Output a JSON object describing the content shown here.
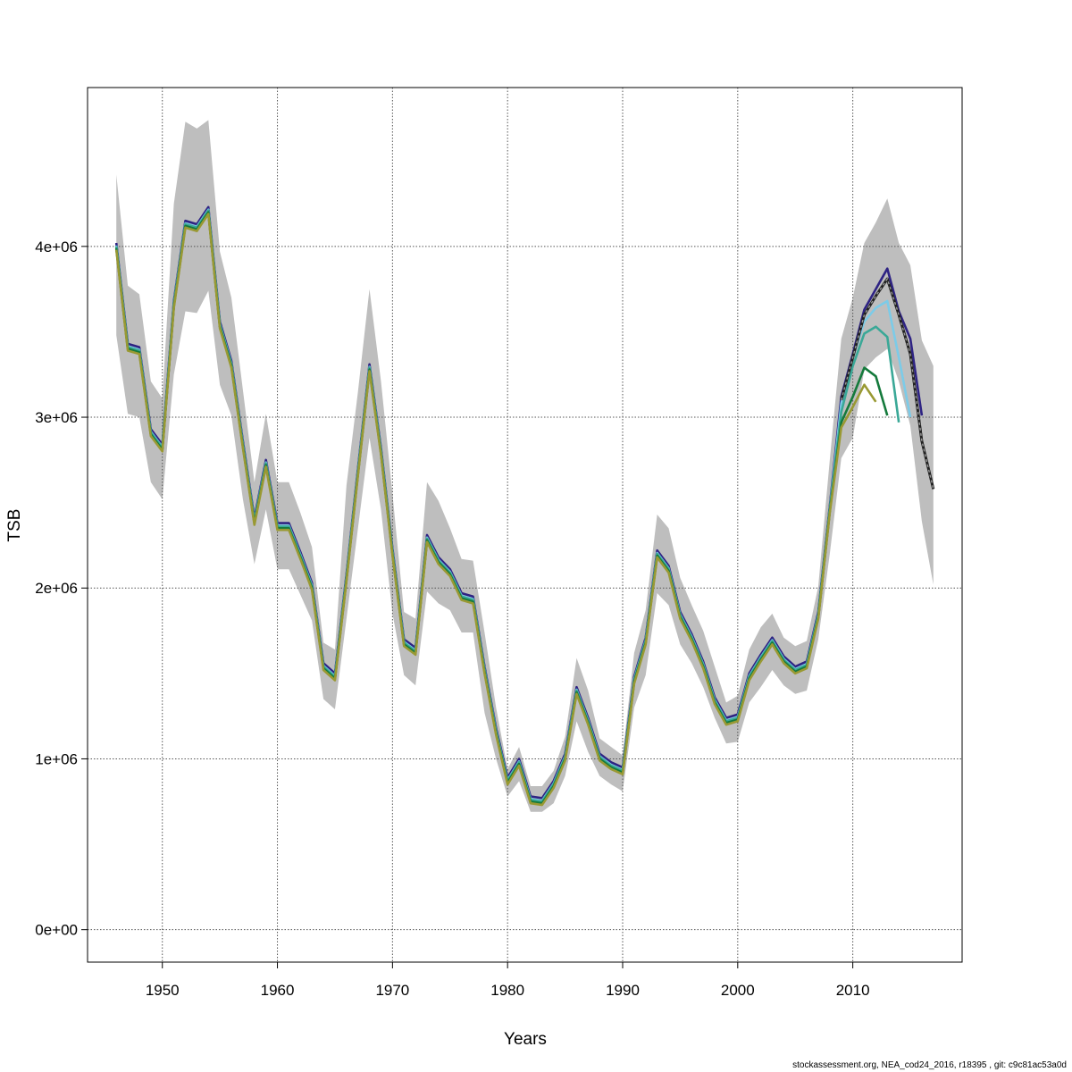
{
  "chart_data": {
    "type": "line",
    "title": "",
    "xlabel": "Years",
    "ylabel": "TSB",
    "xlim": [
      1943.5,
      2019.5
    ],
    "ylim": [
      -190000,
      4930000
    ],
    "value_unit": 1000000,
    "grid": true,
    "legend": "none",
    "x_ticks": [
      1950,
      1960,
      1970,
      1980,
      1990,
      2000,
      2010
    ],
    "x_tick_labels": [
      "1950",
      "1960",
      "1970",
      "1980",
      "1990",
      "2000",
      "2010"
    ],
    "y_ticks": [
      0,
      1,
      2,
      3,
      4
    ],
    "y_tick_labels": [
      "0e+00",
      "1e+06",
      "2e+06",
      "3e+06",
      "4e+06"
    ],
    "years": [
      1946,
      1947,
      1948,
      1949,
      1950,
      1951,
      1952,
      1953,
      1954,
      1955,
      1956,
      1957,
      1958,
      1959,
      1960,
      1961,
      1962,
      1963,
      1964,
      1965,
      1966,
      1967,
      1968,
      1969,
      1970,
      1971,
      1972,
      1973,
      1974,
      1975,
      1976,
      1977,
      1978,
      1979,
      1980,
      1981,
      1982,
      1983,
      1984,
      1985,
      1986,
      1987,
      1988,
      1989,
      1990,
      1991,
      1992,
      1993,
      1994,
      1995,
      1996,
      1997,
      1998,
      1999,
      2000,
      2001,
      2002,
      2003,
      2004,
      2005,
      2006,
      2007,
      2008,
      2009,
      2010,
      2011,
      2012,
      2013,
      2014,
      2015,
      2016,
      2017
    ],
    "base": {
      "name": "base",
      "color": "#000000",
      "values": [
        3.99,
        3.4,
        3.38,
        2.9,
        2.81,
        3.65,
        4.12,
        4.1,
        4.2,
        3.53,
        3.3,
        2.83,
        2.38,
        2.72,
        2.35,
        2.35,
        2.18,
        2.0,
        1.53,
        1.47,
        2.05,
        2.67,
        3.28,
        2.79,
        2.2,
        1.67,
        1.62,
        2.28,
        2.15,
        2.08,
        1.94,
        1.92,
        1.51,
        1.15,
        0.86,
        0.97,
        0.75,
        0.74,
        0.84,
        1.0,
        1.39,
        1.21,
        1.0,
        0.95,
        0.92,
        1.45,
        1.68,
        2.19,
        2.1,
        1.83,
        1.7,
        1.54,
        1.33,
        1.21,
        1.23,
        1.47,
        1.58,
        1.68,
        1.57,
        1.51,
        1.54,
        1.83,
        2.45,
        3.1,
        3.35,
        3.6,
        3.71,
        3.81,
        3.6,
        3.37,
        2.86,
        2.58
      ],
      "lower": [
        3.48,
        3.02,
        3.0,
        2.62,
        2.52,
        3.25,
        3.62,
        3.61,
        3.74,
        3.19,
        3.01,
        2.52,
        2.14,
        2.46,
        2.11,
        2.11,
        1.96,
        1.81,
        1.35,
        1.29,
        1.82,
        2.35,
        2.88,
        2.46,
        1.85,
        1.49,
        1.43,
        1.98,
        1.91,
        1.87,
        1.74,
        1.74,
        1.27,
        1.0,
        0.78,
        0.87,
        0.69,
        0.69,
        0.74,
        0.9,
        1.22,
        1.04,
        0.9,
        0.85,
        0.81,
        1.3,
        1.49,
        1.97,
        1.9,
        1.67,
        1.56,
        1.42,
        1.24,
        1.09,
        1.1,
        1.33,
        1.42,
        1.52,
        1.43,
        1.38,
        1.4,
        1.7,
        2.2,
        2.76,
        2.88,
        3.28,
        3.35,
        3.4,
        3.21,
        2.95,
        2.39,
        2.02
      ],
      "upper": [
        4.42,
        3.77,
        3.72,
        3.21,
        3.11,
        4.25,
        4.73,
        4.69,
        4.74,
        3.97,
        3.7,
        3.16,
        2.62,
        3.02,
        2.62,
        2.62,
        2.44,
        2.24,
        1.68,
        1.64,
        2.6,
        3.15,
        3.75,
        3.21,
        2.55,
        1.86,
        1.82,
        2.62,
        2.51,
        2.35,
        2.17,
        2.16,
        1.74,
        1.3,
        0.94,
        1.07,
        0.84,
        0.84,
        0.93,
        1.13,
        1.59,
        1.4,
        1.12,
        1.07,
        1.02,
        1.62,
        1.87,
        2.43,
        2.35,
        2.06,
        1.9,
        1.75,
        1.54,
        1.33,
        1.37,
        1.64,
        1.77,
        1.85,
        1.71,
        1.66,
        1.69,
        2.01,
        2.75,
        3.46,
        3.7,
        4.02,
        4.14,
        4.28,
        4.02,
        3.89,
        3.45,
        3.3
      ]
    },
    "retro_peels": [
      {
        "name": "-1",
        "color": "#2e2383",
        "end_year": 2016,
        "recent_start": 2009,
        "recent_values": [
          3.12,
          3.37,
          3.63,
          3.75,
          3.87,
          3.62,
          3.46,
          3.01
        ],
        "history_offset": 0.03
      },
      {
        "name": "-2",
        "color": "#7ccbe8",
        "end_year": 2015,
        "recent_start": 2009,
        "recent_values": [
          3.08,
          3.35,
          3.56,
          3.64,
          3.68,
          3.35,
          3.0
        ],
        "history_offset": 0.015
      },
      {
        "name": "-3",
        "color": "#3aa897",
        "end_year": 2014,
        "recent_start": 2009,
        "recent_values": [
          3.03,
          3.3,
          3.49,
          3.53,
          3.47,
          2.97
        ],
        "history_offset": 0.01
      },
      {
        "name": "-4",
        "color": "#157a3c",
        "end_year": 2013,
        "recent_start": 2009,
        "recent_values": [
          2.97,
          3.12,
          3.29,
          3.24,
          3.01
        ],
        "history_offset": 0.0
      },
      {
        "name": "-5",
        "color": "#999933",
        "end_year": 2012,
        "recent_start": 2009,
        "recent_values": [
          2.94,
          3.06,
          3.19,
          3.09
        ],
        "history_offset": -0.01
      }
    ],
    "band_color": "#bebebe"
  },
  "footer": "stockassessment.org, NEA_cod24_2016, r18395 , git: c9c81ac53a0d"
}
